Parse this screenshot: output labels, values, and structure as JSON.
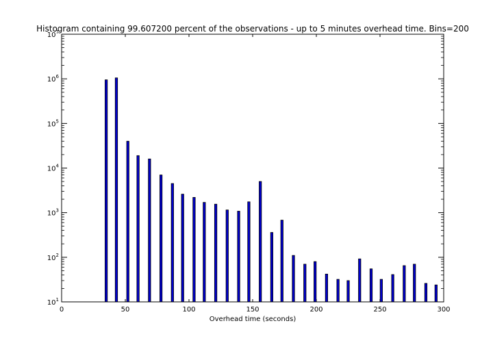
{
  "chart_data": {
    "type": "bar",
    "title": "Histogram containing 99.607200 percent of the observations - up to 5 minutes overhead time. Bins=200",
    "xlabel": "Overhead time (seconds)",
    "ylabel": "",
    "xlim": [
      0,
      300
    ],
    "ylim": [
      10,
      10000000
    ],
    "y_scale": "log",
    "x_ticks": [
      0,
      50,
      100,
      150,
      200,
      250,
      300
    ],
    "y_ticks": [
      {
        "value": 10,
        "base": "10",
        "exp": "1"
      },
      {
        "value": 100,
        "base": "10",
        "exp": "2"
      },
      {
        "value": 1000,
        "base": "10",
        "exp": "3"
      },
      {
        "value": 10000,
        "base": "10",
        "exp": "4"
      },
      {
        "value": 100000,
        "base": "10",
        "exp": "5"
      },
      {
        "value": 1000000,
        "base": "10",
        "exp": "6"
      },
      {
        "value": 10000000,
        "base": "10",
        "exp": "7"
      }
    ],
    "grid": false,
    "bar_color": "#0000cc",
    "bar_edge_color": "#000000",
    "bars": [
      {
        "x": 35,
        "y": 950000
      },
      {
        "x": 43,
        "y": 1050000
      },
      {
        "x": 52,
        "y": 40000
      },
      {
        "x": 60,
        "y": 19000
      },
      {
        "x": 69,
        "y": 16000
      },
      {
        "x": 78,
        "y": 7000
      },
      {
        "x": 87,
        "y": 4500
      },
      {
        "x": 95,
        "y": 2600
      },
      {
        "x": 104,
        "y": 2200
      },
      {
        "x": 112,
        "y": 1700
      },
      {
        "x": 121,
        "y": 1550
      },
      {
        "x": 130,
        "y": 1150
      },
      {
        "x": 139,
        "y": 1080
      },
      {
        "x": 147,
        "y": 1750
      },
      {
        "x": 156,
        "y": 5000
      },
      {
        "x": 165,
        "y": 360
      },
      {
        "x": 173,
        "y": 680
      },
      {
        "x": 182,
        "y": 110
      },
      {
        "x": 191,
        "y": 70
      },
      {
        "x": 199,
        "y": 80
      },
      {
        "x": 208,
        "y": 42
      },
      {
        "x": 217,
        "y": 32
      },
      {
        "x": 225,
        "y": 30
      },
      {
        "x": 234,
        "y": 92
      },
      {
        "x": 243,
        "y": 55
      },
      {
        "x": 251,
        "y": 32
      },
      {
        "x": 260,
        "y": 41
      },
      {
        "x": 269,
        "y": 65
      },
      {
        "x": 277,
        "y": 70
      },
      {
        "x": 286,
        "y": 26
      },
      {
        "x": 294,
        "y": 24
      }
    ]
  }
}
